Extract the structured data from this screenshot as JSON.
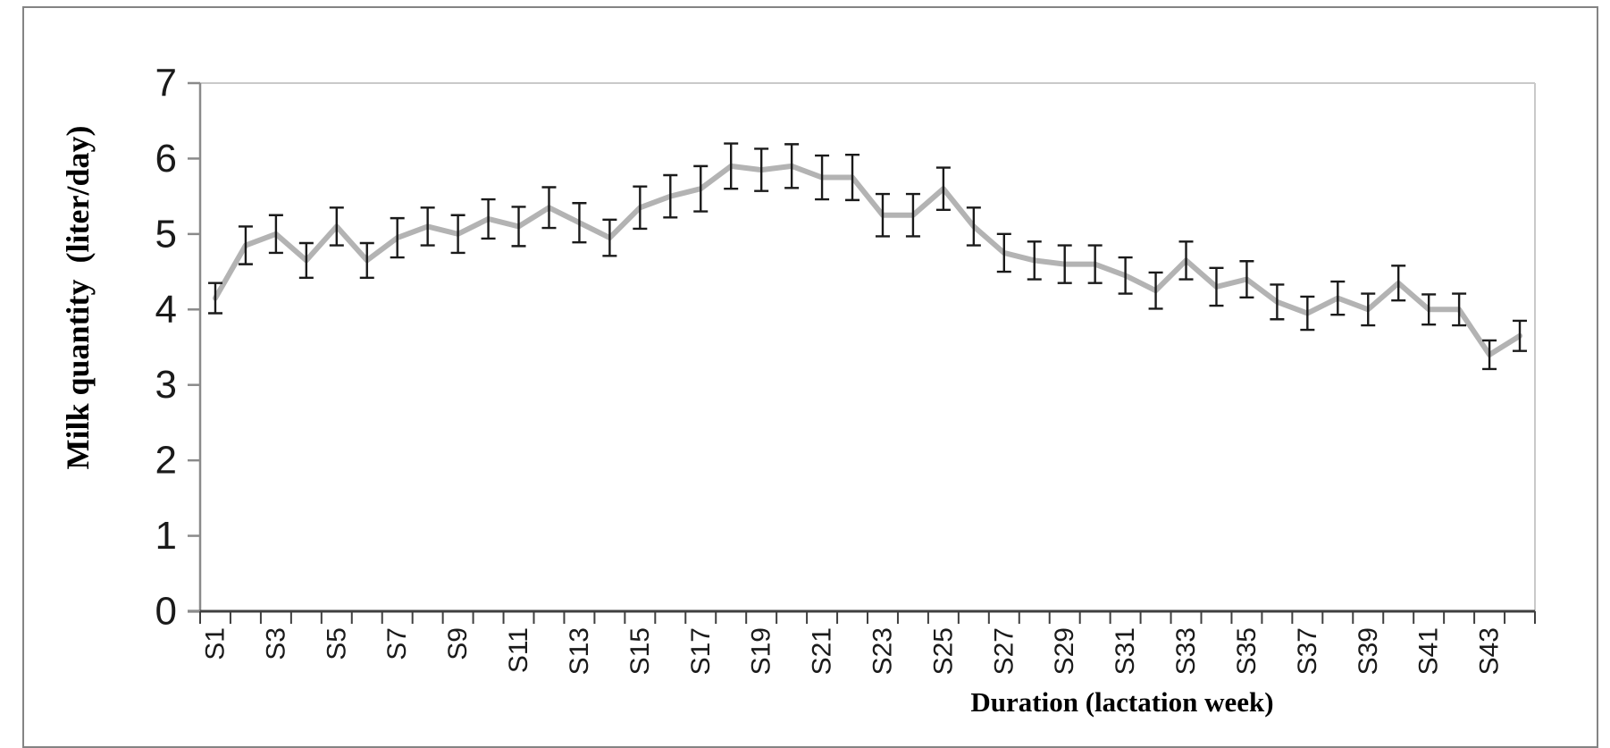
{
  "chart_data": {
    "type": "line",
    "title": "",
    "xlabel": "Duration (lactation week)",
    "ylabel": "Milk quantity  (liter/day)",
    "categories": [
      "S1",
      "S2",
      "S3",
      "S4",
      "S5",
      "S6",
      "S7",
      "S8",
      "S9",
      "S10",
      "S11",
      "S12",
      "S13",
      "S14",
      "S15",
      "S16",
      "S17",
      "S18",
      "S19",
      "S20",
      "S21",
      "S22",
      "S23",
      "S24",
      "S25",
      "S26",
      "S27",
      "S28",
      "S29",
      "S30",
      "S31",
      "S32",
      "S33",
      "S34",
      "S35",
      "S36",
      "S37",
      "S38",
      "S39",
      "S40",
      "S41",
      "S42",
      "S43",
      "S44"
    ],
    "x_tick_labels_shown": [
      "S1",
      "S3",
      "S5",
      "S7",
      "S9",
      "S11",
      "S13",
      "S15",
      "S17",
      "S19",
      "S21",
      "S23",
      "S25",
      "S27",
      "S29",
      "S31",
      "S33",
      "S35",
      "S37",
      "S39",
      "S41",
      "S43"
    ],
    "y_ticks": [
      0,
      1,
      2,
      3,
      4,
      5,
      6,
      7
    ],
    "ylim": [
      0,
      7
    ],
    "grid": false,
    "legend": "none",
    "series": [
      {
        "name": "Milk quantity (liter/day)",
        "values": [
          4.15,
          4.85,
          5.0,
          4.65,
          5.1,
          4.65,
          4.95,
          5.1,
          5.0,
          5.2,
          5.1,
          5.35,
          5.15,
          4.95,
          5.35,
          5.5,
          5.6,
          5.9,
          5.85,
          5.9,
          5.75,
          5.75,
          5.25,
          5.25,
          5.6,
          5.1,
          4.75,
          4.65,
          4.6,
          4.6,
          4.45,
          4.25,
          4.65,
          4.3,
          4.4,
          4.1,
          3.95,
          4.15,
          4.0,
          4.35,
          4.0,
          4.0,
          3.4,
          3.65
        ],
        "errors": [
          0.2,
          0.25,
          0.25,
          0.23,
          0.25,
          0.23,
          0.26,
          0.25,
          0.25,
          0.26,
          0.26,
          0.27,
          0.26,
          0.24,
          0.28,
          0.28,
          0.3,
          0.3,
          0.28,
          0.29,
          0.29,
          0.3,
          0.28,
          0.28,
          0.28,
          0.25,
          0.25,
          0.25,
          0.25,
          0.25,
          0.24,
          0.24,
          0.25,
          0.25,
          0.24,
          0.23,
          0.22,
          0.22,
          0.21,
          0.23,
          0.2,
          0.21,
          0.19,
          0.2
        ]
      }
    ],
    "colors": {
      "line": "#b3b3b3",
      "error_bars": "#1a1a1a",
      "axis_bottom": "#3f3f3f",
      "axis_left": "#8a8a8a",
      "plot_border": "#c9c9c9",
      "figure_border": "#848484",
      "text": "#1a1a1a"
    }
  }
}
